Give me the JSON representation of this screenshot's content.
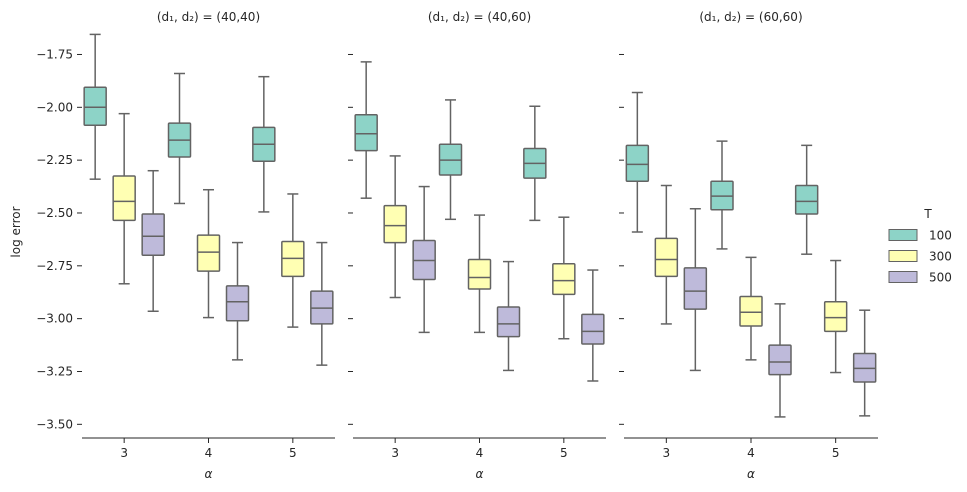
{
  "chart_data": {
    "type": "boxplot",
    "ylabel": "log error",
    "xlabel": "α",
    "ylim": [
      -3.56,
      -1.62
    ],
    "yticks": [
      -1.75,
      -2.0,
      -2.25,
      -2.5,
      -2.75,
      -3.0,
      -3.25,
      -3.5
    ],
    "ytick_labels": [
      "−1.75",
      "−2.00",
      "−2.25",
      "−2.50",
      "−2.75",
      "−3.00",
      "−3.25",
      "−3.50"
    ],
    "categories": [
      "3",
      "4",
      "5"
    ],
    "legend": {
      "title": "T",
      "position": "right",
      "entries": [
        {
          "label": "100",
          "color": "#8dd3c7"
        },
        {
          "label": "300",
          "color": "#ffffb3"
        },
        {
          "label": "500",
          "color": "#bebada"
        }
      ]
    },
    "facets": [
      {
        "title": "(d₁, d₂) = (40,40)",
        "groups": [
          {
            "alpha": "3",
            "boxes": [
              {
                "T": "100",
                "whislo": -2.34,
                "q1": -2.085,
                "med": -2.0,
                "q3": -1.905,
                "whishi": -1.655
              },
              {
                "T": "300",
                "whislo": -2.835,
                "q1": -2.535,
                "med": -2.445,
                "q3": -2.325,
                "whishi": -2.03
              },
              {
                "T": "500",
                "whislo": -2.965,
                "q1": -2.7,
                "med": -2.61,
                "q3": -2.505,
                "whishi": -2.3
              }
            ]
          },
          {
            "alpha": "4",
            "boxes": [
              {
                "T": "100",
                "whislo": -2.455,
                "q1": -2.235,
                "med": -2.155,
                "q3": -2.075,
                "whishi": -1.84
              },
              {
                "T": "300",
                "whislo": -2.995,
                "q1": -2.775,
                "med": -2.685,
                "q3": -2.605,
                "whishi": -2.39
              },
              {
                "T": "500",
                "whislo": -3.195,
                "q1": -3.01,
                "med": -2.92,
                "q3": -2.845,
                "whishi": -2.64
              }
            ]
          },
          {
            "alpha": "5",
            "boxes": [
              {
                "T": "100",
                "whislo": -2.495,
                "q1": -2.255,
                "med": -2.175,
                "q3": -2.095,
                "whishi": -1.855
              },
              {
                "T": "300",
                "whislo": -3.04,
                "q1": -2.8,
                "med": -2.715,
                "q3": -2.635,
                "whishi": -2.41
              },
              {
                "T": "500",
                "whislo": -3.22,
                "q1": -3.025,
                "med": -2.95,
                "q3": -2.87,
                "whishi": -2.64
              }
            ]
          }
        ]
      },
      {
        "title": "(d₁, d₂) = (40,60)",
        "groups": [
          {
            "alpha": "3",
            "boxes": [
              {
                "T": "100",
                "whislo": -2.43,
                "q1": -2.205,
                "med": -2.125,
                "q3": -2.035,
                "whishi": -1.785
              },
              {
                "T": "300",
                "whislo": -2.9,
                "q1": -2.64,
                "med": -2.56,
                "q3": -2.465,
                "whishi": -2.23
              },
              {
                "T": "500",
                "whislo": -3.065,
                "q1": -2.815,
                "med": -2.725,
                "q3": -2.63,
                "whishi": -2.375
              }
            ]
          },
          {
            "alpha": "4",
            "boxes": [
              {
                "T": "100",
                "whislo": -2.53,
                "q1": -2.32,
                "med": -2.25,
                "q3": -2.175,
                "whishi": -1.965
              },
              {
                "T": "300",
                "whislo": -3.065,
                "q1": -2.86,
                "med": -2.805,
                "q3": -2.72,
                "whishi": -2.51
              },
              {
                "T": "500",
                "whislo": -3.245,
                "q1": -3.085,
                "med": -3.025,
                "q3": -2.945,
                "whishi": -2.73
              }
            ]
          },
          {
            "alpha": "5",
            "boxes": [
              {
                "T": "100",
                "whislo": -2.535,
                "q1": -2.335,
                "med": -2.265,
                "q3": -2.195,
                "whishi": -1.995
              },
              {
                "T": "300",
                "whislo": -3.095,
                "q1": -2.885,
                "med": -2.82,
                "q3": -2.74,
                "whishi": -2.52
              },
              {
                "T": "500",
                "whislo": -3.295,
                "q1": -3.12,
                "med": -3.06,
                "q3": -2.98,
                "whishi": -2.77
              }
            ]
          }
        ]
      },
      {
        "title": "(d₁, d₂) = (60,60)",
        "groups": [
          {
            "alpha": "3",
            "boxes": [
              {
                "T": "100",
                "whislo": -2.59,
                "q1": -2.35,
                "med": -2.27,
                "q3": -2.18,
                "whishi": -1.93
              },
              {
                "T": "300",
                "whislo": -3.025,
                "q1": -2.8,
                "med": -2.72,
                "q3": -2.62,
                "whishi": -2.37
              },
              {
                "T": "500",
                "whislo": -3.245,
                "q1": -2.955,
                "med": -2.87,
                "q3": -2.76,
                "whishi": -2.48
              }
            ]
          },
          {
            "alpha": "4",
            "boxes": [
              {
                "T": "100",
                "whislo": -2.67,
                "q1": -2.485,
                "med": -2.42,
                "q3": -2.35,
                "whishi": -2.16
              },
              {
                "T": "300",
                "whislo": -3.195,
                "q1": -3.035,
                "med": -2.97,
                "q3": -2.895,
                "whishi": -2.71
              },
              {
                "T": "500",
                "whislo": -3.465,
                "q1": -3.265,
                "med": -3.205,
                "q3": -3.125,
                "whishi": -2.93
              }
            ]
          },
          {
            "alpha": "5",
            "boxes": [
              {
                "T": "100",
                "whislo": -2.695,
                "q1": -2.505,
                "med": -2.445,
                "q3": -2.37,
                "whishi": -2.18
              },
              {
                "T": "300",
                "whislo": -3.255,
                "q1": -3.06,
                "med": -2.995,
                "q3": -2.92,
                "whishi": -2.725
              },
              {
                "T": "500",
                "whislo": -3.46,
                "q1": -3.3,
                "med": -3.235,
                "q3": -3.165,
                "whishi": -2.96
              }
            ]
          }
        ]
      }
    ]
  }
}
